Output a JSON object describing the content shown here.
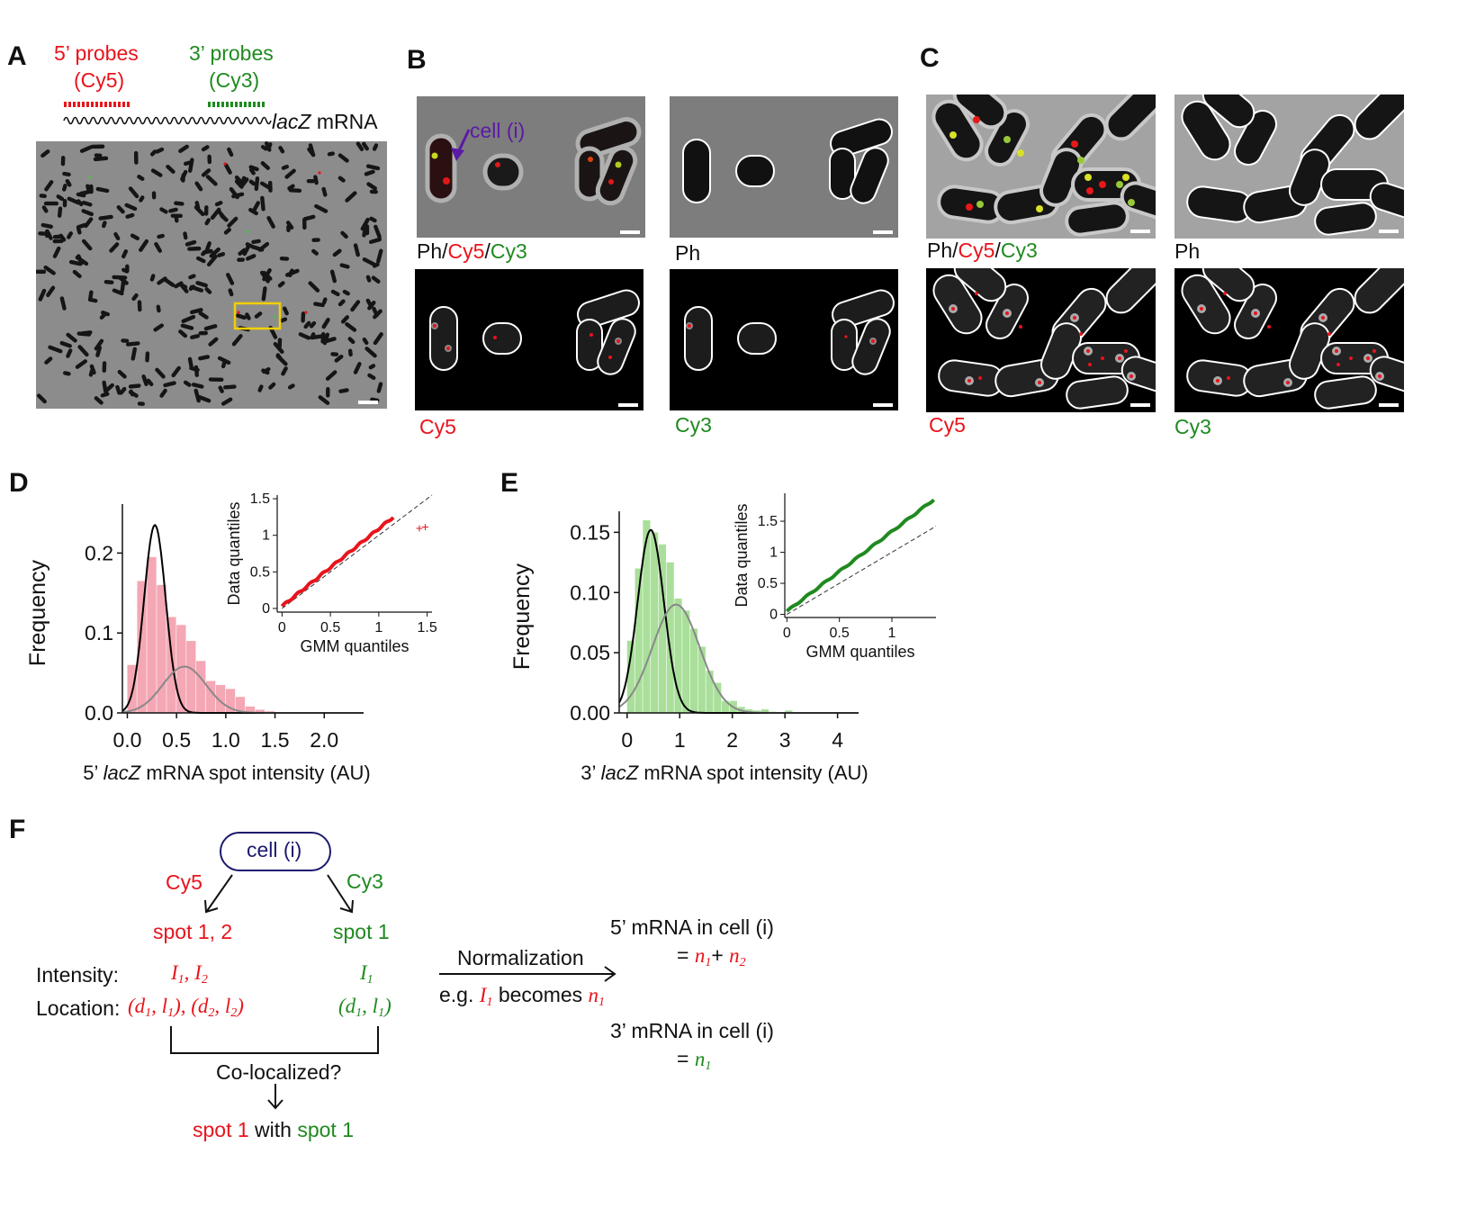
{
  "panels": {
    "A": "A",
    "B": "B",
    "C": "C",
    "D": "D",
    "E": "E",
    "F": "F"
  },
  "panelA": {
    "probe5_title": "5’ probes",
    "probe5_dye": "(Cy5)",
    "probe3_title": "3’ probes",
    "probe3_dye": "(Cy3)",
    "mrna_gene": "lacZ",
    "mrna_suffix": " mRNA"
  },
  "panelB": {
    "cell_label": "cell (i)",
    "merge_ph": "Ph",
    "merge_sep": "/",
    "merge_cy5": "Cy5",
    "merge_cy3": "Cy3",
    "ph_label": "Ph",
    "cy5_label": "Cy5",
    "cy3_label": "Cy3"
  },
  "panelC": {
    "merge_ph": "Ph",
    "merge_sep": "/",
    "merge_cy5": "Cy5",
    "merge_cy3": "Cy3",
    "ph_label": "Ph",
    "cy5_label": "Cy5",
    "cy3_label": "Cy3"
  },
  "colors": {
    "cy5": "#e8141c",
    "cy3": "#1f8a1f",
    "hist_red": "#f4a7b4",
    "hist_green": "#a9df9a",
    "highlight_box": "#f0d000",
    "arrow": "#5b1aa6"
  },
  "chart_data": [
    {
      "id": "D",
      "type": "bar",
      "xlabel_prefix": "5’ ",
      "xlabel_gene": "lacZ",
      "xlabel_suffix": " mRNA spot intensity (AU)",
      "ylabel": "Frequency",
      "xlim": [
        -0.05,
        2.4
      ],
      "ylim": [
        0,
        0.25
      ],
      "xticks": [
        "0.0",
        "0.5",
        "1.0",
        "1.5",
        "2.0"
      ],
      "xtick_values": [
        0,
        0.5,
        1.0,
        1.5,
        2.0
      ],
      "yticks": [
        "0.0",
        "0.1",
        "0.2"
      ],
      "ytick_values": [
        0,
        0.1,
        0.2
      ],
      "bin_width": 0.1,
      "bins": [
        {
          "x": 0.0,
          "y": 0.06
        },
        {
          "x": 0.1,
          "y": 0.165
        },
        {
          "x": 0.2,
          "y": 0.195
        },
        {
          "x": 0.3,
          "y": 0.16
        },
        {
          "x": 0.4,
          "y": 0.12
        },
        {
          "x": 0.5,
          "y": 0.11
        },
        {
          "x": 0.6,
          "y": 0.09
        },
        {
          "x": 0.7,
          "y": 0.065
        },
        {
          "x": 0.8,
          "y": 0.04
        },
        {
          "x": 0.9,
          "y": 0.035
        },
        {
          "x": 1.0,
          "y": 0.03
        },
        {
          "x": 1.1,
          "y": 0.02
        },
        {
          "x": 1.2,
          "y": 0.008
        },
        {
          "x": 1.3,
          "y": 0.004
        },
        {
          "x": 1.4,
          "y": 0.002
        }
      ],
      "gaussians": [
        {
          "mean": 0.28,
          "sd": 0.11,
          "peak": 0.235,
          "color": "#000000"
        },
        {
          "mean": 0.58,
          "sd": 0.22,
          "peak": 0.058,
          "color": "#888888"
        }
      ],
      "inset": {
        "xlabel": "GMM quantiles",
        "ylabel": "Data quantiles",
        "xlim": [
          -0.05,
          1.55
        ],
        "ylim": [
          -0.05,
          1.55
        ],
        "xticks": [
          "0",
          "0.5",
          "1",
          "1.5"
        ],
        "xtick_values": [
          0,
          0.5,
          1,
          1.5
        ],
        "yticks": [
          "0",
          "0.5",
          "1",
          "1.5"
        ],
        "ytick_values": [
          0,
          0.5,
          1,
          1.5
        ],
        "x_start": 0.0,
        "x_end": 1.15,
        "y_start": 0.03,
        "y_end": 1.25,
        "outliers": [
          [
            1.42,
            1.1
          ],
          [
            1.48,
            1.12
          ]
        ],
        "color": "#e8141c"
      }
    },
    {
      "id": "E",
      "type": "bar",
      "xlabel_prefix": "3’ ",
      "xlabel_gene": "lacZ",
      "xlabel_suffix": " mRNA spot intensity (AU)",
      "ylabel": "Frequency",
      "xlim": [
        -0.15,
        4.4
      ],
      "ylim": [
        0,
        0.16
      ],
      "xticks": [
        "0",
        "1",
        "2",
        "3",
        "4"
      ],
      "xtick_values": [
        0,
        1,
        2,
        3,
        4
      ],
      "yticks": [
        "0.00",
        "0.05",
        "0.10",
        "0.15"
      ],
      "ytick_values": [
        0,
        0.05,
        0.1,
        0.15
      ],
      "bin_width": 0.15,
      "bins": [
        {
          "x": 0.0,
          "y": 0.06
        },
        {
          "x": 0.15,
          "y": 0.12
        },
        {
          "x": 0.3,
          "y": 0.16
        },
        {
          "x": 0.45,
          "y": 0.15
        },
        {
          "x": 0.6,
          "y": 0.14
        },
        {
          "x": 0.75,
          "y": 0.125
        },
        {
          "x": 0.9,
          "y": 0.095
        },
        {
          "x": 1.05,
          "y": 0.085
        },
        {
          "x": 1.2,
          "y": 0.07
        },
        {
          "x": 1.35,
          "y": 0.055
        },
        {
          "x": 1.5,
          "y": 0.035
        },
        {
          "x": 1.65,
          "y": 0.025
        },
        {
          "x": 1.8,
          "y": 0.01
        },
        {
          "x": 1.95,
          "y": 0.01
        },
        {
          "x": 2.1,
          "y": 0.005
        },
        {
          "x": 2.25,
          "y": 0.003
        },
        {
          "x": 2.4,
          "y": 0.002
        },
        {
          "x": 2.55,
          "y": 0.003
        },
        {
          "x": 2.7,
          "y": 0.001
        },
        {
          "x": 3.0,
          "y": 0.002
        }
      ],
      "gaussians": [
        {
          "mean": 0.45,
          "sd": 0.25,
          "peak": 0.152,
          "color": "#000000"
        },
        {
          "mean": 0.93,
          "sd": 0.45,
          "peak": 0.09,
          "color": "#888888"
        }
      ],
      "inset": {
        "xlabel": "GMM quantiles",
        "ylabel": "Data quantiles",
        "xlim": [
          -0.02,
          1.42
        ],
        "ylim": [
          -0.05,
          1.95
        ],
        "xticks": [
          "0",
          "0.5",
          "1"
        ],
        "xtick_values": [
          0,
          0.5,
          1
        ],
        "yticks": [
          "0",
          "0.5",
          "1",
          "1.5"
        ],
        "ytick_values": [
          0,
          0.5,
          1,
          1.5
        ],
        "x_start": 0.0,
        "x_end": 1.4,
        "y_start": 0.05,
        "y_end": 1.85,
        "outliers": [],
        "color": "#1f8a1f"
      }
    }
  ],
  "panelF": {
    "cell_label": "cell (i)",
    "cy5": "Cy5",
    "cy3": "Cy3",
    "spots_cy5": "spot 1, 2",
    "spots_cy3": "spot 1",
    "intensity_label": "Intensity:",
    "location_label": "Location:",
    "I": "I",
    "d": "d",
    "l": "l",
    "n": "n",
    "sub1": "1",
    "sub2": "2",
    "colocalized": "Co-localized?",
    "result_spot_red": "spot 1",
    "result_with": " with ",
    "result_spot_green": "spot 1",
    "normalization": "Normalization",
    "eg_prefix": "e.g. ",
    "eg_becomes": " becomes ",
    "mrna5_label": "5’ mRNA in cell (i)",
    "mrna3_label": "3’ mRNA in cell (i)",
    "equals": "= ",
    "plus": "+ "
  }
}
